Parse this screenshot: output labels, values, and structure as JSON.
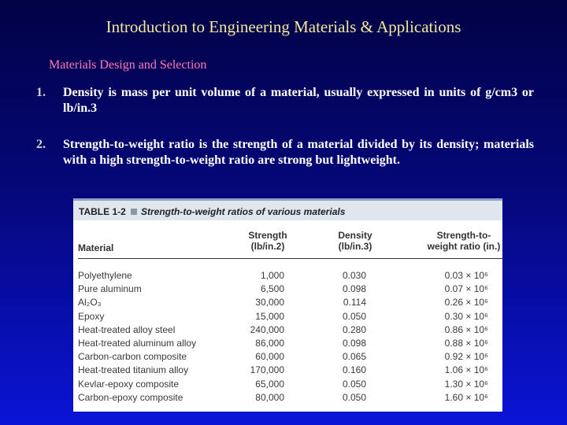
{
  "slide": {
    "title": "Introduction to Engineering Materials & Applications",
    "subtitle": "Materials Design and Selection",
    "bullets": [
      {
        "num": "1.",
        "text": "Density is mass per unit volume of a material, usually expressed in units of g/cm3 or lb/in.3"
      },
      {
        "num": "2.",
        "text": "Strength-to-weight ratio is the strength of a material divided by its density; materials with a high strength-to-weight ratio are strong but lightweight."
      }
    ]
  },
  "table": {
    "label": "TABLE 1-2",
    "caption": "Strength-to-weight ratios of various materials",
    "headers": {
      "material": "Material",
      "strength": "Strength (lb/in.2)",
      "density": "Density (lb/in.3)",
      "ratio": "Strength-to-weight ratio (in.)"
    },
    "rows": [
      {
        "material": "Polyethylene",
        "strength": "1,000",
        "density": "0.030",
        "ratio": "0.03 × 10⁶"
      },
      {
        "material": "Pure aluminum",
        "strength": "6,500",
        "density": "0.098",
        "ratio": "0.07 × 10⁶"
      },
      {
        "material": "Al₂O₃",
        "strength": "30,000",
        "density": "0.114",
        "ratio": "0.26 × 10⁶"
      },
      {
        "material": "Epoxy",
        "strength": "15,000",
        "density": "0.050",
        "ratio": "0.30 × 10⁶"
      },
      {
        "material": "Heat-treated alloy steel",
        "strength": "240,000",
        "density": "0.280",
        "ratio": "0.86 × 10⁶"
      },
      {
        "material": "Heat-treated aluminum alloy",
        "strength": "86,000",
        "density": "0.098",
        "ratio": "0.88 × 10⁶"
      },
      {
        "material": "Carbon-carbon composite",
        "strength": "60,000",
        "density": "0.065",
        "ratio": "0.92 × 10⁶"
      },
      {
        "material": "Heat-treated titanium alloy",
        "strength": "170,000",
        "density": "0.160",
        "ratio": "1.06 × 10⁶"
      },
      {
        "material": "Kevlar-epoxy composite",
        "strength": "65,000",
        "density": "0.050",
        "ratio": "1.30 × 10⁶"
      },
      {
        "material": "Carbon-epoxy composite",
        "strength": "80,000",
        "density": "0.050",
        "ratio": "1.60 × 10⁶"
      }
    ]
  }
}
